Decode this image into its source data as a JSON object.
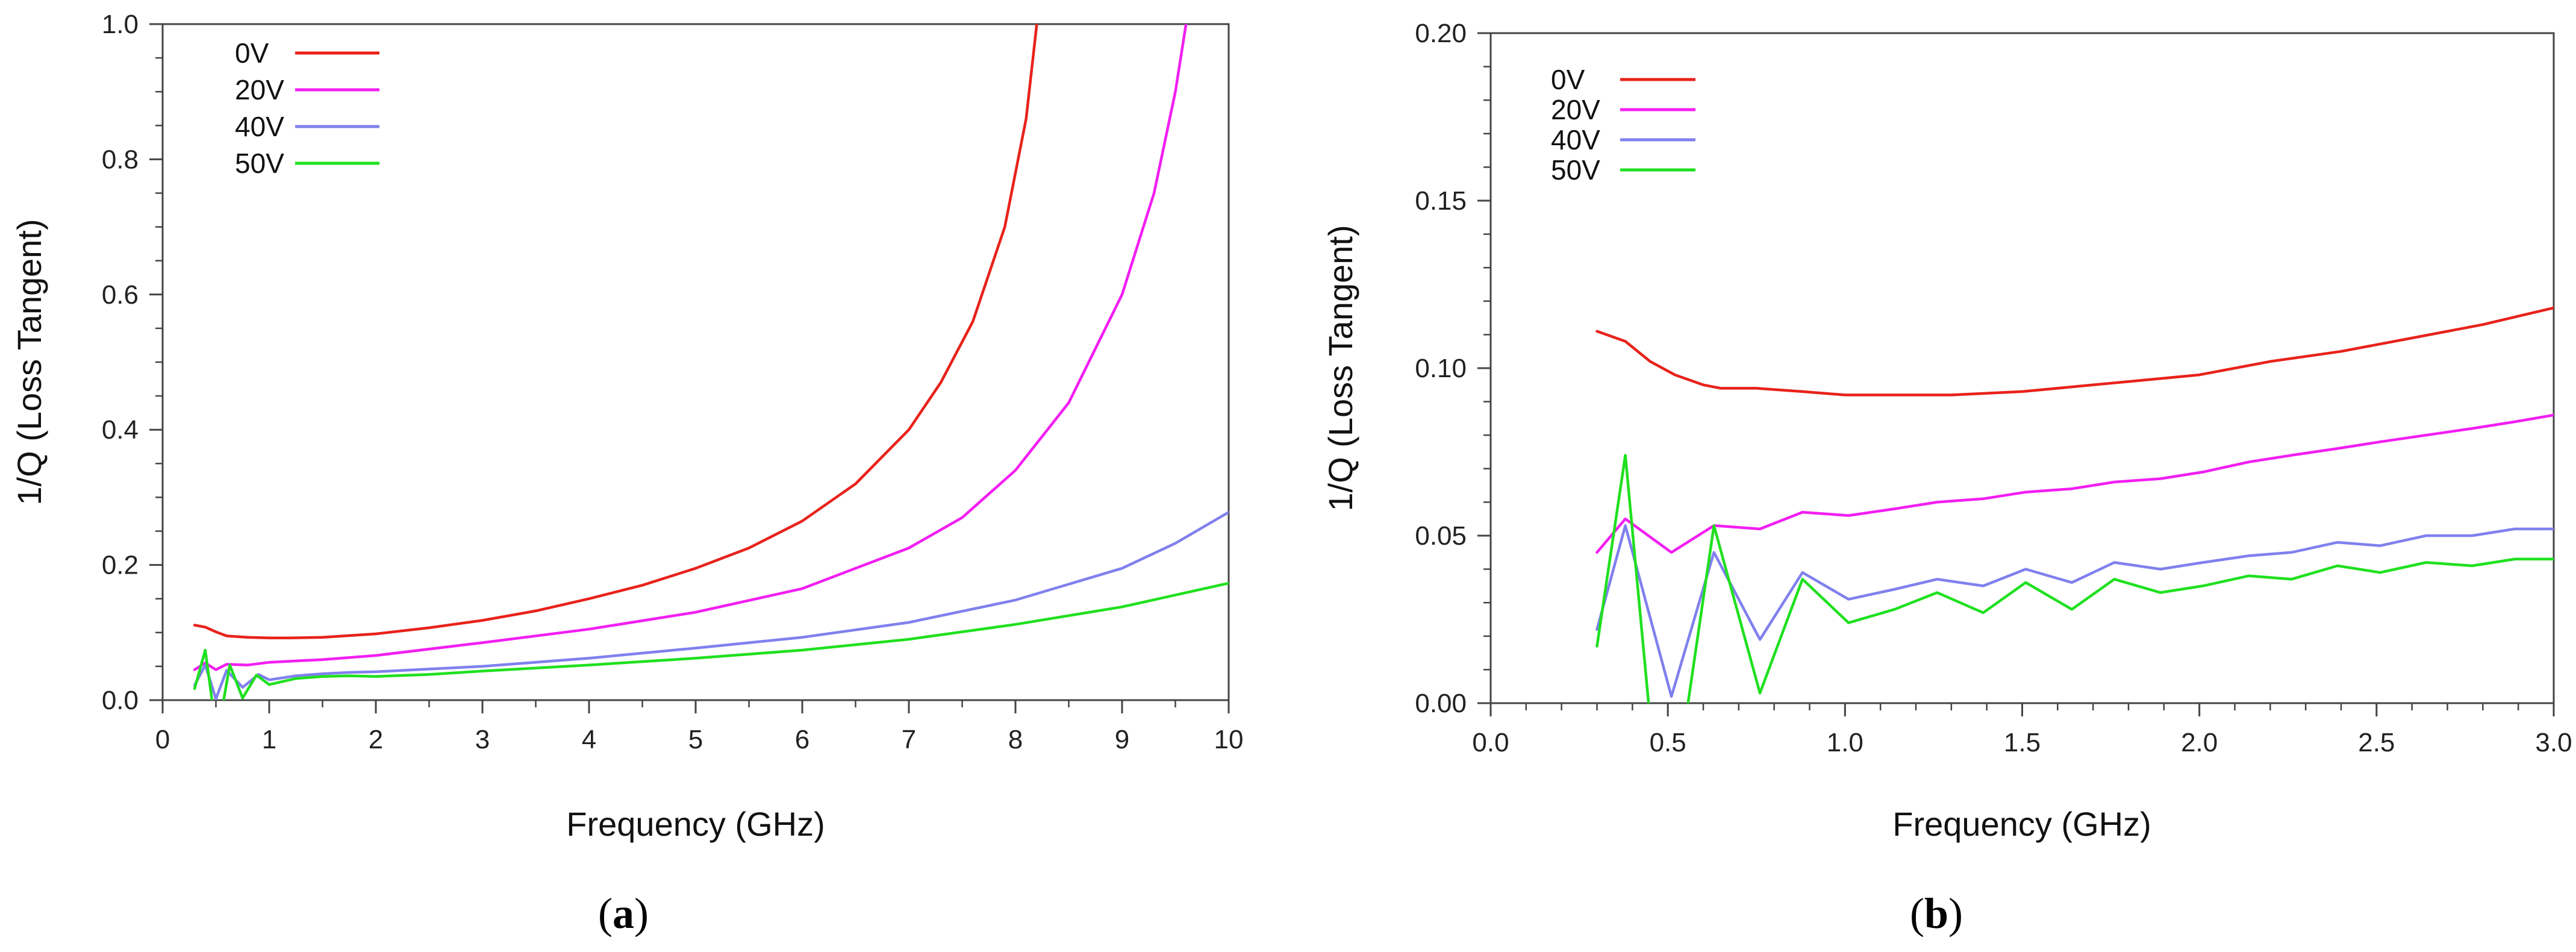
{
  "chart_data": [
    {
      "type": "line",
      "panel": "a",
      "xlabel": "Frequency (GHz)",
      "ylabel": "1/Q (Loss Tangent)",
      "xlim": [
        0,
        10
      ],
      "ylim": [
        0,
        1.0
      ],
      "xticks": [
        0,
        1,
        2,
        3,
        4,
        5,
        6,
        7,
        8,
        9,
        10
      ],
      "xtick_labels": [
        "0",
        "1",
        "2",
        "3",
        "4",
        "5",
        "6",
        "7",
        "8",
        "9",
        "10"
      ],
      "yticks": [
        0,
        0.2,
        0.4,
        0.6,
        0.8,
        1.0
      ],
      "ytick_labels": [
        "0.0",
        "0.2",
        "0.4",
        "0.6",
        "0.8",
        "1.0"
      ],
      "legend_position": "top-left",
      "series": [
        {
          "name": "0V",
          "color": "#e8221b",
          "x": [
            0.3,
            0.4,
            0.5,
            0.6,
            0.8,
            1.0,
            1.2,
            1.5,
            2.0,
            2.5,
            3.0,
            3.5,
            4.0,
            4.5,
            5.0,
            5.5,
            6.0,
            6.5,
            7.0,
            7.3,
            7.6,
            7.9,
            8.1,
            8.2
          ],
          "y": [
            0.111,
            0.108,
            0.101,
            0.095,
            0.093,
            0.092,
            0.092,
            0.093,
            0.098,
            0.107,
            0.118,
            0.132,
            0.15,
            0.17,
            0.195,
            0.225,
            0.265,
            0.32,
            0.4,
            0.47,
            0.56,
            0.7,
            0.86,
            1.0
          ]
        },
        {
          "name": "20V",
          "color": "#f21ef2",
          "x": [
            0.3,
            0.4,
            0.5,
            0.6,
            0.8,
            1.0,
            1.5,
            2.0,
            3.0,
            4.0,
            5.0,
            6.0,
            7.0,
            7.5,
            8.0,
            8.5,
            9.0,
            9.3,
            9.5,
            9.6
          ],
          "y": [
            0.045,
            0.055,
            0.045,
            0.053,
            0.052,
            0.056,
            0.06,
            0.066,
            0.085,
            0.105,
            0.13,
            0.165,
            0.225,
            0.27,
            0.34,
            0.44,
            0.6,
            0.75,
            0.9,
            1.0
          ]
        },
        {
          "name": "40V",
          "color": "#8080ee",
          "x": [
            0.3,
            0.4,
            0.5,
            0.6,
            0.75,
            0.9,
            1.0,
            1.25,
            1.5,
            1.75,
            2.0,
            2.5,
            3.0,
            4.0,
            5.0,
            6.0,
            7.0,
            8.0,
            9.0,
            9.5,
            10.0
          ],
          "y": [
            0.022,
            0.052,
            0.002,
            0.044,
            0.019,
            0.038,
            0.03,
            0.036,
            0.039,
            0.041,
            0.042,
            0.046,
            0.05,
            0.062,
            0.077,
            0.093,
            0.115,
            0.148,
            0.195,
            0.232,
            0.278
          ]
        },
        {
          "name": "50V",
          "color": "#1fe01f",
          "x": [
            0.3,
            0.4,
            0.48,
            0.55,
            0.63,
            0.75,
            0.88,
            1.0,
            1.25,
            1.5,
            1.75,
            2.0,
            2.5,
            3.0,
            4.0,
            5.0,
            6.0,
            7.0,
            8.0,
            9.0,
            10.0
          ],
          "y": [
            0.017,
            0.074,
            -0.02,
            -0.02,
            0.052,
            0.003,
            0.037,
            0.023,
            0.032,
            0.035,
            0.036,
            0.035,
            0.038,
            0.043,
            0.052,
            0.062,
            0.074,
            0.09,
            0.112,
            0.138,
            0.173
          ]
        }
      ]
    },
    {
      "type": "line",
      "panel": "b",
      "xlabel": "Frequency (GHz)",
      "ylabel": "1/Q (Loss Tangent)",
      "xlim": [
        0,
        3.0
      ],
      "ylim": [
        0,
        0.2
      ],
      "xticks": [
        0,
        0.5,
        1.0,
        1.5,
        2.0,
        2.5,
        3.0
      ],
      "xtick_labels": [
        "0.0",
        "0.5",
        "1.0",
        "1.5",
        "2.0",
        "2.5",
        "3.0"
      ],
      "yticks": [
        0,
        0.05,
        0.1,
        0.15,
        0.2
      ],
      "ytick_labels": [
        "0.00",
        "0.05",
        "0.10",
        "0.15",
        "0.20"
      ],
      "legend_position": "top-left",
      "series": [
        {
          "name": "0V",
          "color": "#e8221b",
          "x": [
            0.3,
            0.38,
            0.45,
            0.52,
            0.6,
            0.65,
            0.75,
            0.88,
            1.0,
            1.15,
            1.3,
            1.5,
            1.7,
            1.9,
            2.0,
            2.2,
            2.4,
            2.6,
            2.8,
            3.0
          ],
          "y": [
            0.111,
            0.108,
            0.102,
            0.098,
            0.095,
            0.094,
            0.094,
            0.093,
            0.092,
            0.092,
            0.092,
            0.093,
            0.095,
            0.097,
            0.098,
            0.102,
            0.105,
            0.109,
            0.113,
            0.118
          ]
        },
        {
          "name": "20V",
          "color": "#f21ef2",
          "x": [
            0.3,
            0.38,
            0.51,
            0.63,
            0.76,
            0.88,
            1.01,
            1.14,
            1.26,
            1.39,
            1.51,
            1.64,
            1.76,
            1.89,
            2.01,
            2.14,
            2.26,
            2.39,
            2.51,
            2.64,
            2.77,
            2.89,
            3.0
          ],
          "y": [
            0.045,
            0.055,
            0.045,
            0.053,
            0.052,
            0.057,
            0.056,
            0.058,
            0.06,
            0.061,
            0.063,
            0.064,
            0.066,
            0.067,
            0.069,
            0.072,
            0.074,
            0.076,
            0.078,
            0.08,
            0.082,
            0.084,
            0.086
          ]
        },
        {
          "name": "40V",
          "color": "#8080ee",
          "x": [
            0.3,
            0.38,
            0.51,
            0.63,
            0.76,
            0.88,
            1.01,
            1.14,
            1.26,
            1.39,
            1.51,
            1.64,
            1.76,
            1.89,
            2.01,
            2.14,
            2.26,
            2.39,
            2.51,
            2.64,
            2.77,
            2.89,
            3.0
          ],
          "y": [
            0.022,
            0.053,
            0.002,
            0.045,
            0.019,
            0.039,
            0.031,
            0.034,
            0.037,
            0.035,
            0.04,
            0.036,
            0.042,
            0.04,
            0.042,
            0.044,
            0.045,
            0.048,
            0.047,
            0.05,
            0.05,
            0.052,
            0.052
          ]
        },
        {
          "name": "50V",
          "color": "#1fe01f",
          "x": [
            0.3,
            0.38,
            0.45,
            0.55,
            0.63,
            0.76,
            0.88,
            1.01,
            1.14,
            1.26,
            1.39,
            1.51,
            1.64,
            1.76,
            1.89,
            2.01,
            2.14,
            2.26,
            2.39,
            2.51,
            2.64,
            2.77,
            2.89,
            3.0
          ],
          "y": [
            0.017,
            0.074,
            -0.005,
            -0.005,
            0.053,
            0.003,
            0.037,
            0.024,
            0.028,
            0.033,
            0.027,
            0.036,
            0.028,
            0.037,
            0.033,
            0.035,
            0.038,
            0.037,
            0.041,
            0.039,
            0.042,
            0.041,
            0.043,
            0.043
          ]
        }
      ]
    }
  ],
  "panel_labels": {
    "a": "a",
    "b": "b"
  }
}
